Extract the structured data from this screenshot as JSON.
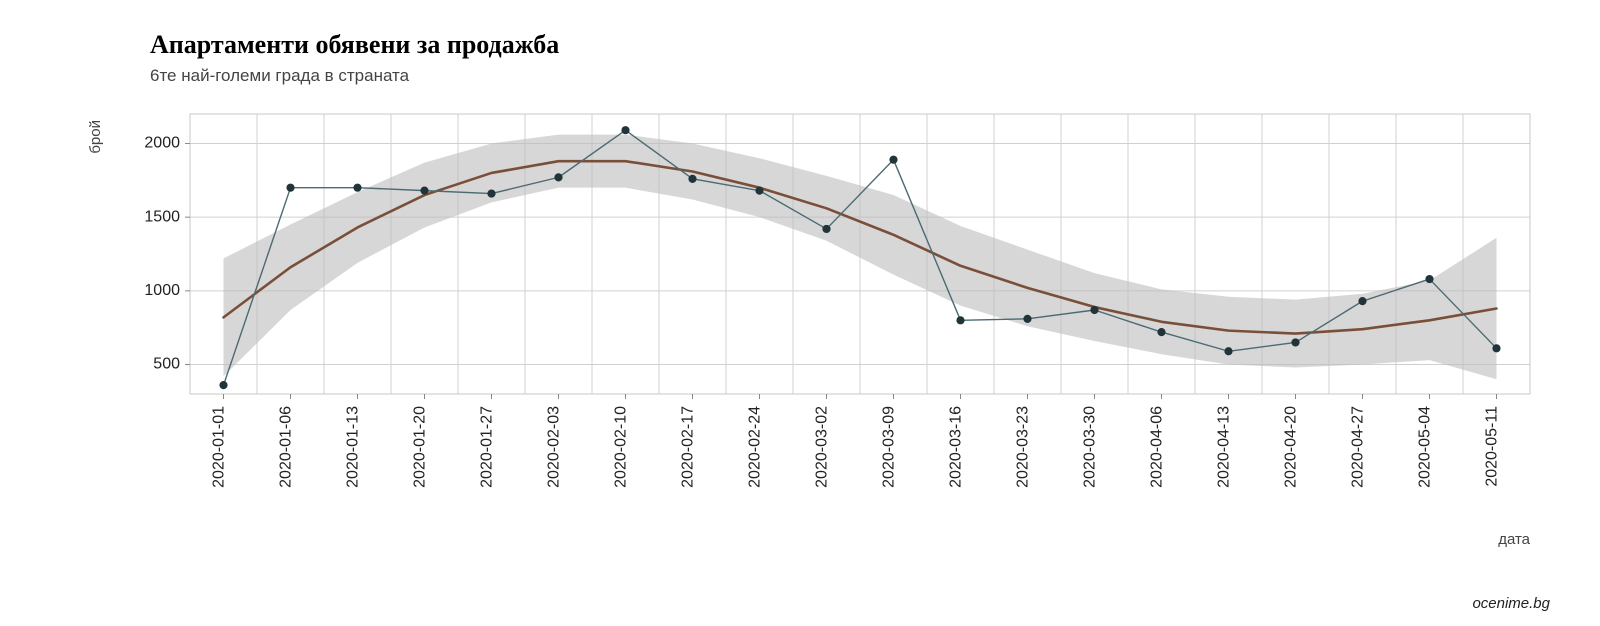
{
  "title": "Апартаменти обявени за продажба",
  "subtitle": "6те най-големи града в страната",
  "ylabel": "брой",
  "xlabel": "дата",
  "caption": "ocenime.bg",
  "chart": {
    "type": "line",
    "background_color": "#ffffff",
    "grid_color": "#d0d0d0",
    "panel_border_color": "#c8c8c8",
    "data_line_color": "#4b6a72",
    "data_line_width": 1.4,
    "point_fill": "#21343a",
    "point_stroke": "#21343a",
    "point_radius": 3.6,
    "trend_line_color": "#7a4f3a",
    "trend_line_width": 2.6,
    "band_fill": "#bdbdbd",
    "band_opacity": 0.6,
    "ylim": [
      300,
      2200
    ],
    "yticks": [
      500,
      1000,
      1500,
      2000
    ],
    "categories": [
      "2020-01-01",
      "2020-01-06",
      "2020-01-13",
      "2020-01-20",
      "2020-01-27",
      "2020-02-03",
      "2020-02-10",
      "2020-02-17",
      "2020-02-24",
      "2020-03-02",
      "2020-03-09",
      "2020-03-16",
      "2020-03-23",
      "2020-03-30",
      "2020-04-06",
      "2020-04-13",
      "2020-04-20",
      "2020-04-27",
      "2020-05-04",
      "2020-05-11"
    ],
    "values": [
      360,
      1700,
      1700,
      1680,
      1660,
      1770,
      2090,
      1760,
      1680,
      1420,
      1890,
      800,
      810,
      870,
      720,
      590,
      650,
      930,
      1080,
      610
    ],
    "trend": [
      820,
      1160,
      1430,
      1650,
      1800,
      1880,
      1880,
      1810,
      1700,
      1560,
      1380,
      1170,
      1020,
      890,
      790,
      730,
      710,
      740,
      800,
      880
    ],
    "band_lo": [
      420,
      870,
      1190,
      1430,
      1600,
      1700,
      1700,
      1620,
      1500,
      1340,
      1110,
      900,
      760,
      660,
      570,
      500,
      480,
      500,
      530,
      400
    ],
    "band_hi": [
      1220,
      1450,
      1670,
      1870,
      2000,
      2060,
      2060,
      2000,
      1900,
      1780,
      1650,
      1440,
      1280,
      1120,
      1010,
      960,
      940,
      980,
      1070,
      1360
    ],
    "title_fontsize": 26,
    "subtitle_fontsize": 17,
    "axis_label_fontsize": 15,
    "tick_fontsize": 16,
    "caption_fontsize": 15
  }
}
